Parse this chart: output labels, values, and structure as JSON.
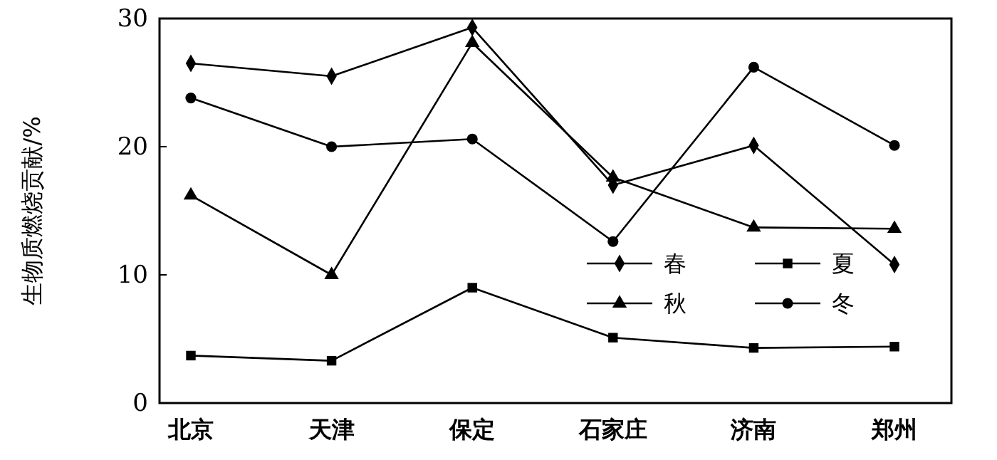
{
  "chart_data": {
    "type": "line",
    "ylabel": "生物质燃烧贡献/%",
    "categories": [
      "北京",
      "天津",
      "保定",
      "石家庄",
      "济南",
      "郑州"
    ],
    "ylim": [
      0,
      30
    ],
    "yticks": [
      0,
      10,
      20,
      30
    ],
    "grid": false,
    "legend": "right",
    "series": [
      {
        "name": "春",
        "color": "#000000",
        "marker": "diamond",
        "values": [
          26.5,
          25.5,
          29.3,
          17.0,
          20.1,
          10.8
        ]
      },
      {
        "name": "夏",
        "color": "#000000",
        "marker": "square",
        "values": [
          3.7,
          3.3,
          9.0,
          5.1,
          4.3,
          4.4
        ]
      },
      {
        "name": "秋",
        "color": "#000000",
        "marker": "triangle",
        "values": [
          16.2,
          10.0,
          28.1,
          17.6,
          13.7,
          13.6
        ]
      },
      {
        "name": "冬",
        "color": "#000000",
        "marker": "circle",
        "values": [
          23.8,
          20.0,
          20.6,
          12.6,
          26.2,
          20.1
        ]
      }
    ]
  }
}
